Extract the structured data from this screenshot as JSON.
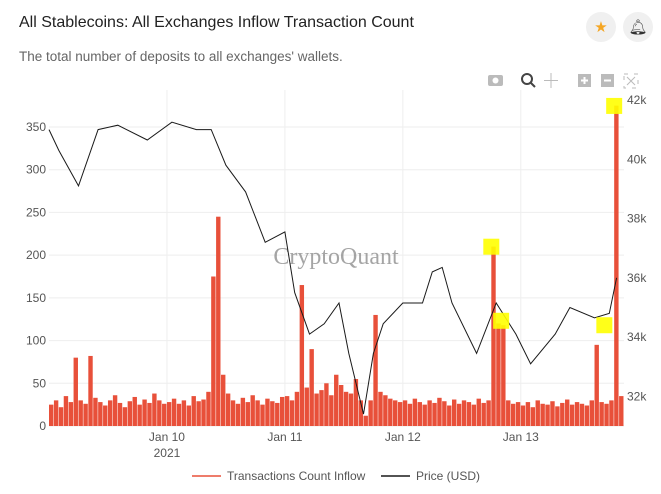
{
  "header": {
    "title": "All Stablecoins: All Exchanges Inflow Transaction Count",
    "subtitle": "The total number of deposits to all exchanges' wallets.",
    "star_icon": "star-icon",
    "bell_icon": "bell-icon"
  },
  "modebar": [
    "camera-icon",
    "zoom-icon",
    "pan-icon",
    "zoom-in-icon",
    "zoom-out-icon",
    "autoscale-icon"
  ],
  "watermark": "CryptoQuant",
  "colors": {
    "inflow": "#e8503a",
    "price": "#1a1a1a",
    "highlight": "#ffff00",
    "accent": "#f5a623"
  },
  "chart_data": {
    "type": "bar+line",
    "x_ticks": [
      {
        "date": "2021-01-10",
        "label": "Jan 10",
        "sub": "2021"
      },
      {
        "date": "2021-01-11",
        "label": "Jan 11"
      },
      {
        "date": "2021-01-12",
        "label": "Jan 12"
      },
      {
        "date": "2021-01-13",
        "label": "Jan 13"
      }
    ],
    "xlim": [
      "2021-01-09 00:00",
      "2021-01-13 21:00"
    ],
    "y_left": {
      "range": [
        0,
        350
      ],
      "ticks": [
        0,
        50,
        100,
        150,
        200,
        250,
        300,
        350
      ]
    },
    "y_right": {
      "range": [
        31000,
        42000
      ],
      "ticks": [
        {
          "v": 32000,
          "label": "32k"
        },
        {
          "v": 34000,
          "label": "34k"
        },
        {
          "v": 36000,
          "label": "36k"
        },
        {
          "v": 38000,
          "label": "38k"
        },
        {
          "v": 40000,
          "label": "40k"
        },
        {
          "v": 42000,
          "label": "42k"
        }
      ]
    },
    "grid": true,
    "legend_position": "bottom",
    "series": [
      {
        "name": "Transactions Count Inflow",
        "type": "bar",
        "axis": "left",
        "hourly_by_day": {
          "2021-01-09": [
            25,
            30,
            22,
            35,
            28,
            80,
            30,
            26,
            82,
            33,
            28,
            24,
            30,
            36,
            27,
            22,
            29,
            34,
            25,
            31,
            27,
            38,
            30,
            26
          ],
          "2021-01-10": [
            28,
            32,
            26,
            30,
            24,
            35,
            29,
            31,
            40,
            175,
            245,
            60,
            38,
            30,
            26,
            33,
            28,
            36,
            30,
            25,
            32,
            29,
            27,
            34
          ],
          "2021-01-11": [
            35,
            30,
            40,
            165,
            45,
            90,
            38,
            42,
            50,
            36,
            60,
            48,
            40,
            38,
            55,
            30,
            12,
            30,
            130,
            40,
            36,
            32,
            30,
            28
          ],
          "2021-01-12": [
            30,
            26,
            32,
            28,
            25,
            30,
            27,
            33,
            29,
            24,
            31,
            26,
            30,
            28,
            25,
            32,
            27,
            30,
            210,
            120,
            118,
            30,
            26,
            28
          ],
          "2021-01-13": [
            24,
            28,
            22,
            30,
            26,
            25,
            29,
            23,
            27,
            31,
            25,
            28,
            26,
            24,
            30,
            95,
            28,
            26,
            30,
            375,
            35
          ]
        }
      },
      {
        "name": "Price (USD)",
        "type": "line",
        "axis": "right",
        "points": [
          [
            "2021-01-09 00:00",
            41000
          ],
          [
            "2021-01-09 02:00",
            40300
          ],
          [
            "2021-01-09 06:00",
            39100
          ],
          [
            "2021-01-09 10:00",
            41000
          ],
          [
            "2021-01-09 14:00",
            41150
          ],
          [
            "2021-01-09 20:00",
            40650
          ],
          [
            "2021-01-10 01:00",
            41250
          ],
          [
            "2021-01-10 06:00",
            41000
          ],
          [
            "2021-01-10 09:00",
            41000
          ],
          [
            "2021-01-10 12:00",
            39800
          ],
          [
            "2021-01-10 16:00",
            38900
          ],
          [
            "2021-01-10 18:00",
            38050
          ],
          [
            "2021-01-10 20:00",
            37200
          ],
          [
            "2021-01-11 00:00",
            37550
          ],
          [
            "2021-01-11 02:00",
            35500
          ],
          [
            "2021-01-11 05:00",
            34100
          ],
          [
            "2021-01-11 08:00",
            34450
          ],
          [
            "2021-01-11 11:00",
            35150
          ],
          [
            "2021-01-11 13:00",
            33450
          ],
          [
            "2021-01-11 16:00",
            31400
          ],
          [
            "2021-01-11 18:00",
            33450
          ],
          [
            "2021-01-11 20:00",
            34450
          ],
          [
            "2021-01-12 00:00",
            35150
          ],
          [
            "2021-01-12 04:00",
            35150
          ],
          [
            "2021-01-12 06:00",
            36200
          ],
          [
            "2021-01-12 08:00",
            36350
          ],
          [
            "2021-01-12 10:00",
            35150
          ],
          [
            "2021-01-12 15:00",
            33450
          ],
          [
            "2021-01-12 19:00",
            35150
          ],
          [
            "2021-01-12 23:00",
            34100
          ],
          [
            "2021-01-13 02:00",
            33100
          ],
          [
            "2021-01-13 07:00",
            34100
          ],
          [
            "2021-01-13 10:00",
            35000
          ],
          [
            "2021-01-13 15:00",
            34650
          ],
          [
            "2021-01-13 18:00",
            34800
          ],
          [
            "2021-01-13 19:30",
            36000
          ]
        ]
      }
    ],
    "highlights": [
      [
        "2021-01-12 18:00",
        37050
      ],
      [
        "2021-01-12 20:00",
        34550
      ],
      [
        "2021-01-13 17:00",
        34400
      ],
      [
        "2021-01-13 19:00",
        41800
      ]
    ]
  }
}
